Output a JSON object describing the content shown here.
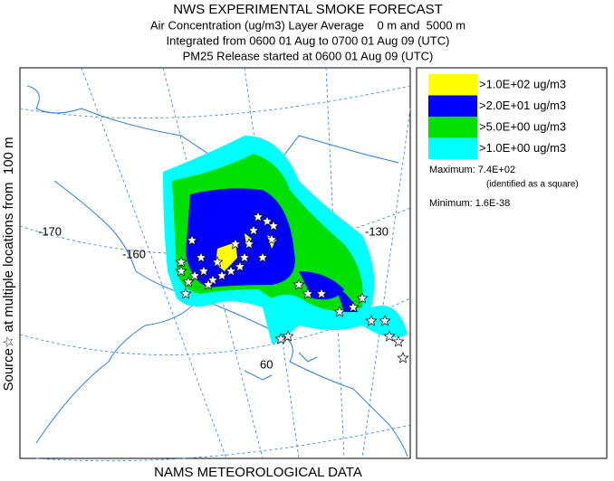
{
  "header": {
    "title": "NWS EXPERIMENTAL SMOKE FORECAST",
    "lines": [
      "Air Concentration (ug/m3) Layer Average    0 m and  5000 m",
      "Integrated from 0600 01 Aug to 0700 01 Aug 09 (UTC)",
      "PM25 Release started at 0600 01 Aug 09 (UTC)"
    ]
  },
  "side_label": "Source☆ at multiple locations from  100 m",
  "footer": "NAMS METEOROLOGICAL DATA",
  "legend": {
    "items": [
      {
        "label": ">1.0E+02 ug/m3",
        "color": "#ffff00"
      },
      {
        "label": ">2.0E+01 ug/m3",
        "color": "#0000ff"
      },
      {
        "label": ">5.0E+00 ug/m3",
        "color": "#00e000"
      },
      {
        "label": ">1.0E+00 ug/m3",
        "color": "#00ffff"
      }
    ],
    "maximum": "Maximum: 7.4E+02",
    "note": "(identified as a square)",
    "minimum": "Minimum: 1.6E-38"
  },
  "map": {
    "labels": [
      "-170",
      "-160",
      "-130",
      "60"
    ]
  }
}
